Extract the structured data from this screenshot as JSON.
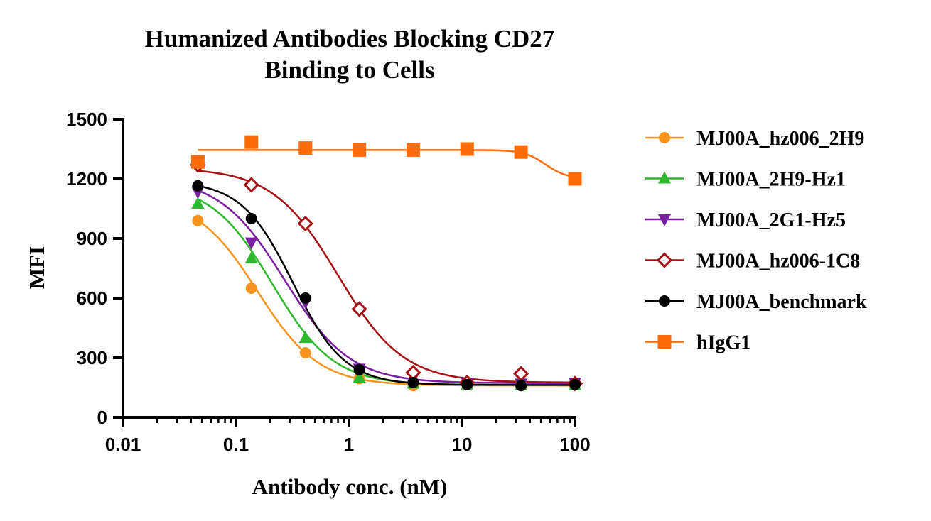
{
  "chart_data": {
    "type": "scatter",
    "title": [
      "Humanized Antibodies Blocking CD27",
      "Binding to Cells"
    ],
    "xlabel": "Antibody conc. (nM)",
    "ylabel": "MFI",
    "xscale": "log",
    "xlim": [
      0.01,
      100
    ],
    "ylim": [
      0,
      1500
    ],
    "x_ticks": [
      0.01,
      0.1,
      1,
      10,
      100
    ],
    "x_tick_labels": [
      "0.01",
      "0.1",
      "1",
      "10",
      "100"
    ],
    "y_ticks": [
      0,
      300,
      600,
      900,
      1200,
      1500
    ],
    "y_tick_labels": [
      "0",
      "300",
      "600",
      "900",
      "1200",
      "1500"
    ],
    "grid": false,
    "legend_position": "right",
    "x": [
      0.046,
      0.137,
      0.412,
      1.235,
      3.704,
      11.11,
      33.33,
      100
    ],
    "series": [
      {
        "name": "MJ00A_hz006_2H9",
        "color": "#f7941d",
        "marker": "circle",
        "values": [
          990,
          650,
          325,
          195,
          160,
          165,
          165,
          165
        ],
        "fit": {
          "bottom": 160,
          "top": 1110,
          "ec50": 0.155,
          "hill": 1.6
        }
      },
      {
        "name": "MJ00A_2H9-Hz1",
        "color": "#2db82d",
        "marker": "triangle-up",
        "values": [
          1075,
          800,
          400,
          200,
          170,
          165,
          162,
          162
        ],
        "fit": {
          "bottom": 163,
          "top": 1180,
          "ec50": 0.21,
          "hill": 1.6
        }
      },
      {
        "name": "MJ00A_2G1-Hz5",
        "color": "#7a1fa2",
        "marker": "triangle-down",
        "values": [
          1135,
          880,
          580,
          245,
          200,
          175,
          170,
          175
        ],
        "fit": {
          "bottom": 172,
          "top": 1210,
          "ec50": 0.27,
          "hill": 1.5
        }
      },
      {
        "name": "MJ00A_hz006-1C8",
        "color": "#a50f15",
        "marker": "diamond-open",
        "values": [
          1270,
          1170,
          975,
          545,
          225,
          175,
          220,
          170
        ],
        "fit": {
          "bottom": 175,
          "top": 1255,
          "ec50": 0.8,
          "hill": 1.5
        }
      },
      {
        "name": "MJ00A_benchmark",
        "color": "#000000",
        "marker": "circle",
        "values": [
          1165,
          1000,
          600,
          240,
          175,
          165,
          160,
          165
        ],
        "fit": {
          "bottom": 163,
          "top": 1190,
          "ec50": 0.32,
          "hill": 1.9
        }
      },
      {
        "name": "hIgG1",
        "color": "#ff6d0a",
        "marker": "square",
        "values": [
          1285,
          1385,
          1355,
          1345,
          1345,
          1350,
          1335,
          1200
        ],
        "fit": {
          "bottom": 1200,
          "top": 1345,
          "ec50": 55,
          "hill": 4.5
        }
      }
    ]
  }
}
